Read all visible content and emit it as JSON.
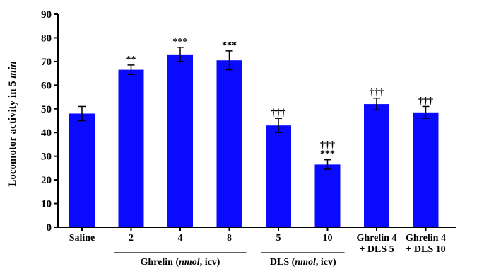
{
  "chart_data": {
    "type": "bar",
    "ylabel_prefix": "Locomotor activity in 5 ",
    "ylabel_unit": "min",
    "xlabel": "",
    "title": "",
    "ylim": [
      0,
      90
    ],
    "yticks": [
      0,
      10,
      20,
      30,
      40,
      50,
      60,
      70,
      80,
      90
    ],
    "bar_color": "#0a0aff",
    "bars": [
      {
        "label_lines": [
          "Saline"
        ],
        "value": 48,
        "error": 3,
        "annotations": []
      },
      {
        "label_lines": [
          "2"
        ],
        "value": 66.5,
        "error": 2,
        "annotations": [
          "**"
        ]
      },
      {
        "label_lines": [
          "4"
        ],
        "value": 73,
        "error": 3,
        "annotations": [
          "***"
        ]
      },
      {
        "label_lines": [
          "8"
        ],
        "value": 70.5,
        "error": 4,
        "annotations": [
          "***"
        ]
      },
      {
        "label_lines": [
          "5"
        ],
        "value": 43,
        "error": 3,
        "annotations": [
          "†††"
        ]
      },
      {
        "label_lines": [
          "10"
        ],
        "value": 26.5,
        "error": 2,
        "annotations": [
          "†††",
          "***"
        ]
      },
      {
        "label_lines": [
          "Ghrelin 4",
          "+ DLS 5"
        ],
        "value": 52,
        "error": 2.5,
        "annotations": [
          "†††"
        ]
      },
      {
        "label_lines": [
          "Ghrelin 4",
          "+ DLS 10"
        ],
        "value": 48.5,
        "error": 2.5,
        "annotations": [
          "†††"
        ]
      }
    ],
    "groups": [
      {
        "name": "Ghrelin",
        "unit": "nmol",
        "route": "icv",
        "bar_start": 1,
        "bar_end": 3
      },
      {
        "name": "DLS",
        "unit": "nmol",
        "route": "icv",
        "bar_start": 4,
        "bar_end": 5
      }
    ]
  }
}
